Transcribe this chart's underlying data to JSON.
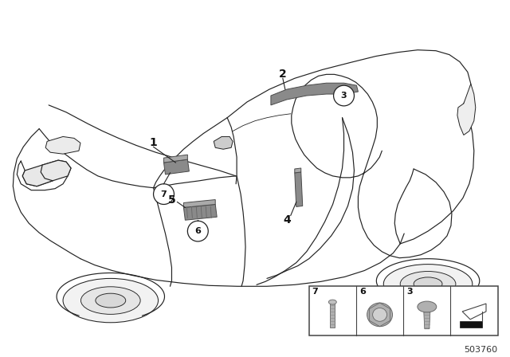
{
  "bg_color": "#ffffff",
  "line_color": "#1a1a1a",
  "diagram_number": "503760",
  "comp_color": "#888888",
  "comp_edge": "#555555"
}
